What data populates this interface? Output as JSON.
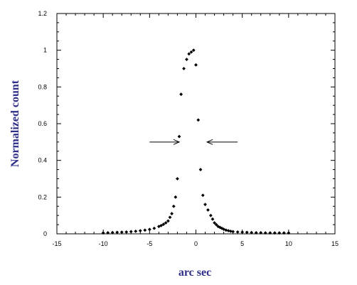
{
  "chart_data": {
    "type": "scatter",
    "title": "",
    "xlabel": "arc sec",
    "ylabel": "Normalized count",
    "xlim": [
      -15,
      15
    ],
    "ylim": [
      0,
      1.2
    ],
    "xticks": [
      "-15",
      "-10",
      "-5",
      "0",
      "5",
      "10",
      "15"
    ],
    "yticks": [
      "0",
      "0.2",
      "0.4",
      "0.6",
      "0.8",
      "1",
      "1.2"
    ],
    "grid": false,
    "legend": "none",
    "colors": {
      "points": "#000000",
      "axis_title": "#2e2e8a"
    },
    "series": [
      {
        "x": [
          -10,
          -9.5,
          -9,
          -8.5,
          -8,
          -7.5,
          -7,
          -6.5,
          -6,
          -5.5,
          -5,
          -4.5,
          -4,
          -3.75,
          -3.5,
          -3.25,
          -3,
          -2.8,
          -2.6,
          -2.4,
          -2.2,
          -2.0,
          -1.8,
          -1.6,
          -1.3,
          -1.0,
          -0.75,
          -0.5,
          -0.25,
          0,
          0.25,
          0.5,
          0.75,
          1.0,
          1.3,
          1.6,
          1.8,
          2.0,
          2.2,
          2.4,
          2.6,
          2.8,
          3.0,
          3.25,
          3.5,
          3.75,
          4.0,
          4.5,
          5.0,
          5.5,
          6.0,
          6.5,
          7.0,
          7.5,
          8.0,
          8.5,
          9.0,
          9.5,
          10.0
        ],
        "y": [
          0.005,
          0.006,
          0.007,
          0.008,
          0.009,
          0.01,
          0.012,
          0.014,
          0.017,
          0.02,
          0.024,
          0.03,
          0.04,
          0.045,
          0.052,
          0.06,
          0.07,
          0.09,
          0.11,
          0.15,
          0.2,
          0.3,
          0.53,
          0.76,
          0.9,
          0.95,
          0.98,
          0.99,
          1.0,
          0.92,
          0.62,
          0.35,
          0.21,
          0.16,
          0.13,
          0.1,
          0.08,
          0.06,
          0.05,
          0.04,
          0.035,
          0.03,
          0.025,
          0.02,
          0.017,
          0.014,
          0.012,
          0.01,
          0.009,
          0.008,
          0.007,
          0.006,
          0.006,
          0.005,
          0.005,
          0.005,
          0.005,
          0.005,
          0.005
        ]
      }
    ],
    "annotations": [
      {
        "type": "arrow",
        "from": [
          -5,
          0.5
        ],
        "to": [
          -1.8,
          0.5
        ],
        "label": ""
      },
      {
        "type": "arrow",
        "from": [
          4.5,
          0.5
        ],
        "to": [
          1.2,
          0.5
        ],
        "label": ""
      }
    ]
  }
}
